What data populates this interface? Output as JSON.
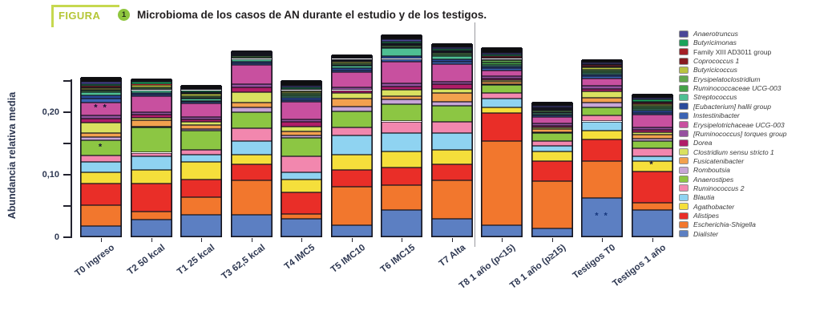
{
  "header": {
    "kicker": "FIGURA",
    "number": "1",
    "title": "Microbioma de los casos de AN durante el estudio y de los testigos."
  },
  "chart_data": {
    "type": "bar",
    "subtype": "stacked",
    "title": "Microbioma de los casos de AN durante el estudio y de los testigos.",
    "xlabel": "",
    "ylabel": "Abundancia relativa media",
    "ylim": [
      0,
      0.26
    ],
    "grid": false,
    "legend_position": "right",
    "yticks": [
      {
        "value": 0.0,
        "label": "0"
      },
      {
        "value": 0.05,
        "label": ""
      },
      {
        "value": 0.1,
        "label": "0,10"
      },
      {
        "value": 0.15,
        "label": ""
      },
      {
        "value": 0.2,
        "label": "0,20"
      },
      {
        "value": 0.25,
        "label": ""
      }
    ],
    "categories": [
      "T0 ingreso",
      "T2 50 kcal",
      "T1 25 kcal",
      "T3 62,5 kcal",
      "T4 IMC5",
      "T5 IMC10",
      "T6 IMC15",
      "T7 Alta",
      "T8 1 año (p<15)",
      "T8 1 año (p≥15)",
      "Testigos T0",
      "Testigos 1 año"
    ],
    "group_divider_after": "T7 Alta",
    "legend": [
      {
        "label": "Anaerotruncus",
        "color": "#4a4798",
        "italic": true
      },
      {
        "label": "Butyricimonas",
        "color": "#19a35a",
        "italic": true
      },
      {
        "label": "Family XIII AD3011 group",
        "color": "#a42026",
        "italic": false
      },
      {
        "label": "Coprococcus 1",
        "color": "#871b20",
        "italic": true
      },
      {
        "label": "Butyricicoccus",
        "color": "#b9c440",
        "italic": true
      },
      {
        "label": "Erysipelatoclostridium",
        "color": "#62a84e",
        "italic": true
      },
      {
        "label": "Ruminococcaceae UCG-003",
        "color": "#44a148",
        "italic": true
      },
      {
        "label": "Streptococcus",
        "color": "#4ebf93",
        "italic": true
      },
      {
        "label": "[Eubacterium] hallii group",
        "color": "#2a4a9b",
        "italic": true
      },
      {
        "label": "Instestinibacter",
        "color": "#3c64b4",
        "italic": true
      },
      {
        "label": "Erysipelotrichaceae UCG-003",
        "color": "#c8509f",
        "italic": true
      },
      {
        "label": "[Ruminococcus] torques group",
        "color": "#95519f",
        "italic": true
      },
      {
        "label": "Dorea",
        "color": "#b01d68",
        "italic": true
      },
      {
        "label": "Clostridium sensu stricto 1",
        "color": "#d9e160",
        "italic": true
      },
      {
        "label": "Fusicatenibacter",
        "color": "#f2a14e",
        "italic": true
      },
      {
        "label": "Romboutsia",
        "color": "#c7a6d6",
        "italic": true
      },
      {
        "label": "Anaerostipes",
        "color": "#8cc643",
        "italic": true
      },
      {
        "label": "Ruminococcus 2",
        "color": "#f287ae",
        "italic": true
      },
      {
        "label": "Blautia",
        "color": "#8fd3f1",
        "italic": true
      },
      {
        "label": "Agathobacter",
        "color": "#f5df3b",
        "italic": true
      },
      {
        "label": "Alistipes",
        "color": "#e92e28",
        "italic": true
      },
      {
        "label": "Escherichia-Shigella",
        "color": "#f2772d",
        "italic": true
      },
      {
        "label": "Dialister",
        "color": "#5c7fc2",
        "italic": true
      }
    ],
    "colors": {
      "Dialister": "#5c7fc2",
      "Escherichia-Shigella": "#f2772d",
      "Alistipes": "#e92e28",
      "Agathobacter": "#f5df3b",
      "Blautia": "#8fd3f1",
      "Ruminococcus 2": "#f287ae",
      "Anaerostipes": "#8cc643",
      "Romboutsia": "#c7a6d6",
      "Fusicatenibacter": "#f2a14e",
      "Clostridium sensu stricto 1": "#d9e160",
      "Dorea": "#b01d68",
      "[Ruminococcus] torques group": "#95519f",
      "Erysipelotrichaceae UCG-003": "#c8509f",
      "Instestinibacter": "#3c64b4",
      "[Eubacterium] hallii group": "#2a4a9b",
      "Streptococcus": "#4ebf93",
      "Ruminococcaceae UCG-003": "#44a148",
      "Erysipelatoclostridium": "#62a84e",
      "Butyricicoccus": "#b9c440",
      "Coprococcus 1": "#871b20",
      "Family XIII AD3011 group": "#a42026",
      "Butyricimonas": "#19a35a",
      "Anaerotruncus": "#4a4798",
      "Otros": "#0e0e10"
    },
    "stack_order_bottom_to_top": [
      "Dialister",
      "Escherichia-Shigella",
      "Alistipes",
      "Agathobacter",
      "Blautia",
      "Ruminococcus 2",
      "Anaerostipes",
      "Romboutsia",
      "Fusicatenibacter",
      "Clostridium sensu stricto 1",
      "Dorea",
      "[Ruminococcus] torques group",
      "Erysipelotrichaceae UCG-003",
      "Instestinibacter",
      "[Eubacterium] hallii group",
      "Streptococcus",
      "Ruminococcaceae UCG-003",
      "Erysipelatoclostridium",
      "Butyricicoccus",
      "Coprococcus 1",
      "Family XIII AD3011 group",
      "Butyricimonas",
      "Anaerotruncus",
      "Otros"
    ],
    "bars": [
      {
        "label": "T0 ingreso",
        "segments": {
          "Dialister": 0.017,
          "Escherichia-Shigella": 0.033,
          "Alistipes": 0.035,
          "Agathobacter": 0.018,
          "Blautia": 0.016,
          "Ruminococcus 2": 0.01,
          "Anaerostipes": 0.025,
          "Romboutsia": 0.005,
          "Fusicatenibacter": 0.006,
          "Clostridium sensu stricto 1": 0.017,
          "Dorea": 0.006,
          "[Ruminococcus] torques group": 0.006,
          "Erysipelotrichaceae UCG-003": 0.02,
          "Instestinibacter": 0.006,
          "[Eubacterium] hallii group": 0.006,
          "Streptococcus": 0.005,
          "Ruminococcaceae UCG-003": 0.002,
          "Erysipelatoclostridium": 0.002,
          "Butyricicoccus": 0.002,
          "Coprococcus 1": 0.002,
          "Family XIII AD3011 group": 0.002,
          "Butyricimonas": 0.003,
          "Anaerotruncus": 0.003,
          "Otros": 0.008
        },
        "annotations": [
          {
            "category": "Erysipelotrichaceae UCG-003",
            "text": "* *",
            "color": "#141432"
          },
          {
            "category": "Anaerostipes",
            "text": "*",
            "color": "#141432"
          }
        ]
      },
      {
        "label": "T2 50 kcal",
        "segments": {
          "Dialister": 0.027,
          "Escherichia-Shigella": 0.013,
          "Alistipes": 0.045,
          "Agathobacter": 0.021,
          "Blautia": 0.022,
          "Ruminococcus 2": 0.006,
          "Anaerostipes": 0.04,
          "Romboutsia": 0.002,
          "Fusicatenibacter": 0.01,
          "Clostridium sensu stricto 1": 0.004,
          "Dorea": 0.005,
          "[Ruminococcus] torques group": 0.004,
          "Erysipelotrichaceae UCG-003": 0.025,
          "Instestinibacter": 0.003,
          "[Eubacterium] hallii group": 0.003,
          "Streptococcus": 0.004,
          "Ruminococcaceae UCG-003": 0.002,
          "Erysipelatoclostridium": 0.003,
          "Butyricicoccus": 0.003,
          "Coprococcus 1": 0.001,
          "Family XIII AD3011 group": 0.001,
          "Butyricimonas": 0.003,
          "Anaerotruncus": 0.002,
          "Otros": 0.003
        },
        "annotations": []
      },
      {
        "label": "T1 25 kcal",
        "segments": {
          "Dialister": 0.035,
          "Escherichia-Shigella": 0.028,
          "Alistipes": 0.028,
          "Agathobacter": 0.028,
          "Blautia": 0.012,
          "Ruminococcus 2": 0.008,
          "Anaerostipes": 0.03,
          "Romboutsia": 0.003,
          "Fusicatenibacter": 0.006,
          "Clostridium sensu stricto 1": 0.005,
          "Dorea": 0.004,
          "[Ruminococcus] torques group": 0.004,
          "Erysipelotrichaceae UCG-003": 0.022,
          "Instestinibacter": 0.002,
          "[Eubacterium] hallii group": 0.002,
          "Streptococcus": 0.003,
          "Ruminococcaceae UCG-003": 0.002,
          "Erysipelatoclostridium": 0.002,
          "Butyricicoccus": 0.004,
          "Coprococcus 1": 0.001,
          "Family XIII AD3011 group": 0.002,
          "Butyricimonas": 0.003,
          "Anaerotruncus": 0.002,
          "Otros": 0.006
        },
        "annotations": []
      },
      {
        "label": "T3 62,5 kcal",
        "segments": {
          "Dialister": 0.035,
          "Escherichia-Shigella": 0.055,
          "Alistipes": 0.026,
          "Agathobacter": 0.015,
          "Blautia": 0.022,
          "Ruminococcus 2": 0.02,
          "Anaerostipes": 0.026,
          "Romboutsia": 0.007,
          "Fusicatenibacter": 0.008,
          "Clostridium sensu stricto 1": 0.017,
          "Dorea": 0.007,
          "[Ruminococcus] torques group": 0.005,
          "Erysipelotrichaceae UCG-003": 0.032,
          "Instestinibacter": 0.002,
          "[Eubacterium] hallii group": 0.003,
          "Streptococcus": 0.004,
          "Ruminococcaceae UCG-003": 0.002,
          "Erysipelatoclostridium": 0.002,
          "Butyricicoccus": 0.002,
          "Coprococcus 1": 0.001,
          "Family XIII AD3011 group": 0.001,
          "Butyricimonas": 0.002,
          "Anaerotruncus": 0.001,
          "Otros": 0.003
        },
        "annotations": []
      },
      {
        "label": "T4 IMC5",
        "segments": {
          "Dialister": 0.028,
          "Escherichia-Shigella": 0.008,
          "Alistipes": 0.035,
          "Agathobacter": 0.02,
          "Blautia": 0.012,
          "Ruminococcus 2": 0.025,
          "Anaerostipes": 0.03,
          "Romboutsia": 0.003,
          "Fusicatenibacter": 0.007,
          "Clostridium sensu stricto 1": 0.008,
          "Dorea": 0.007,
          "[Ruminococcus] torques group": 0.004,
          "Erysipelotrichaceae UCG-003": 0.028,
          "Instestinibacter": 0.003,
          "[Eubacterium] hallii group": 0.004,
          "Streptococcus": 0.003,
          "Ruminococcaceae UCG-003": 0.002,
          "Erysipelatoclostridium": 0.002,
          "Butyricicoccus": 0.003,
          "Coprococcus 1": 0.002,
          "Family XIII AD3011 group": 0.002,
          "Butyricimonas": 0.003,
          "Anaerotruncus": 0.002,
          "Otros": 0.009
        },
        "annotations": []
      },
      {
        "label": "T5 IMC10",
        "segments": {
          "Dialister": 0.018,
          "Escherichia-Shigella": 0.062,
          "Alistipes": 0.026,
          "Agathobacter": 0.025,
          "Blautia": 0.03,
          "Ruminococcus 2": 0.013,
          "Anaerostipes": 0.026,
          "Romboutsia": 0.008,
          "Fusicatenibacter": 0.013,
          "Clostridium sensu stricto 1": 0.008,
          "Dorea": 0.005,
          "[Ruminococcus] torques group": 0.004,
          "Erysipelotrichaceae UCG-003": 0.025,
          "Instestinibacter": 0.003,
          "[Eubacterium] hallii group": 0.003,
          "Streptococcus": 0.004,
          "Ruminococcaceae UCG-003": 0.002,
          "Erysipelatoclostridium": 0.002,
          "Butyricicoccus": 0.003,
          "Coprococcus 1": 0.001,
          "Family XIII AD3011 group": 0.001,
          "Butyricimonas": 0.002,
          "Anaerotruncus": 0.002,
          "Otros": 0.005
        },
        "annotations": []
      },
      {
        "label": "T6 IMC15",
        "segments": {
          "Dialister": 0.042,
          "Escherichia-Shigella": 0.04,
          "Alistipes": 0.028,
          "Agathobacter": 0.026,
          "Blautia": 0.03,
          "Ruminococcus 2": 0.018,
          "Anaerostipes": 0.028,
          "Romboutsia": 0.007,
          "Fusicatenibacter": 0.005,
          "Clostridium sensu stricto 1": 0.01,
          "Dorea": 0.006,
          "[Ruminococcus] torques group": 0.005,
          "Erysipelotrichaceae UCG-003": 0.035,
          "Instestinibacter": 0.004,
          "[Eubacterium] hallii group": 0.005,
          "Streptococcus": 0.012,
          "Ruminococcaceae UCG-003": 0.002,
          "Erysipelatoclostridium": 0.002,
          "Butyricicoccus": 0.002,
          "Coprococcus 1": 0.001,
          "Family XIII AD3011 group": 0.001,
          "Butyricimonas": 0.003,
          "Anaerotruncus": 0.003,
          "Otros": 0.008
        },
        "annotations": []
      },
      {
        "label": "T7 Alta",
        "segments": {
          "Dialister": 0.028,
          "Escherichia-Shigella": 0.062,
          "Alistipes": 0.026,
          "Agathobacter": 0.022,
          "Blautia": 0.027,
          "Ruminococcus 2": 0.018,
          "Anaerostipes": 0.026,
          "Romboutsia": 0.006,
          "Fusicatenibacter": 0.015,
          "Clostridium sensu stricto 1": 0.006,
          "Dorea": 0.008,
          "[Ruminococcus] torques group": 0.004,
          "Erysipelotrichaceae UCG-003": 0.028,
          "Instestinibacter": 0.003,
          "[Eubacterium] hallii group": 0.004,
          "Streptococcus": 0.006,
          "Ruminococcaceae UCG-003": 0.002,
          "Erysipelatoclostridium": 0.002,
          "Butyricicoccus": 0.002,
          "Coprococcus 1": 0.001,
          "Family XIII AD3011 group": 0.001,
          "Butyricimonas": 0.003,
          "Anaerotruncus": 0.002,
          "Otros": 0.007
        },
        "annotations": []
      },
      {
        "label": "T8 1 año (p<15)",
        "segments": {
          "Dialister": 0.018,
          "Escherichia-Shigella": 0.135,
          "Alistipes": 0.045,
          "Agathobacter": 0.009,
          "Blautia": 0.014,
          "Ruminococcus 2": 0.008,
          "Anaerostipes": 0.013,
          "Romboutsia": 0.002,
          "Fusicatenibacter": 0.003,
          "Clostridium sensu stricto 1": 0.003,
          "Dorea": 0.003,
          "[Ruminococcus] torques group": 0.003,
          "Erysipelotrichaceae UCG-003": 0.01,
          "Instestinibacter": 0.003,
          "[Eubacterium] hallii group": 0.003,
          "Streptococcus": 0.003,
          "Ruminococcaceae UCG-003": 0.003,
          "Erysipelatoclostridium": 0.004,
          "Butyricicoccus": 0.002,
          "Coprococcus 1": 0.002,
          "Family XIII AD3011 group": 0.002,
          "Butyricimonas": 0.003,
          "Anaerotruncus": 0.003,
          "Otros": 0.009
        },
        "annotations": []
      },
      {
        "label": "T8 1 año (p≥15)",
        "segments": {
          "Dialister": 0.013,
          "Escherichia-Shigella": 0.075,
          "Alistipes": 0.033,
          "Agathobacter": 0.015,
          "Blautia": 0.009,
          "Ruminococcus 2": 0.007,
          "Anaerostipes": 0.013,
          "Romboutsia": 0.002,
          "Fusicatenibacter": 0.005,
          "Clostridium sensu stricto 1": 0.002,
          "Dorea": 0.003,
          "[Ruminococcus] torques group": 0.004,
          "Erysipelotrichaceae UCG-003": 0.01,
          "Instestinibacter": 0.002,
          "[Eubacterium] hallii group": 0.002,
          "Streptococcus": 0.002,
          "Ruminococcaceae UCG-003": 0.002,
          "Erysipelatoclostridium": 0.002,
          "Butyricicoccus": 0.002,
          "Coprococcus 1": 0.001,
          "Family XIII AD3011 group": 0.001,
          "Butyricimonas": 0.002,
          "Anaerotruncus": 0.002,
          "Otros": 0.006
        },
        "annotations": []
      },
      {
        "label": "Testigos T0",
        "segments": {
          "Dialister": 0.062,
          "Escherichia-Shigella": 0.058,
          "Alistipes": 0.035,
          "Agathobacter": 0.014,
          "Blautia": 0.015,
          "Ruminococcus 2": 0.01,
          "Anaerostipes": 0.012,
          "Romboutsia": 0.008,
          "Fusicatenibacter": 0.008,
          "Clostridium sensu stricto 1": 0.01,
          "Dorea": 0.004,
          "[Ruminococcus] torques group": 0.005,
          "Erysipelotrichaceae UCG-003": 0.012,
          "Instestinibacter": 0.003,
          "[Eubacterium] hallii group": 0.003,
          "Streptococcus": 0.003,
          "Ruminococcaceae UCG-003": 0.002,
          "Erysipelatoclostridium": 0.003,
          "Butyricicoccus": 0.003,
          "Coprococcus 1": 0.002,
          "Family XIII AD3011 group": 0.002,
          "Butyricimonas": 0.002,
          "Anaerotruncus": 0.002,
          "Otros": 0.005
        },
        "annotations": [
          {
            "category": "Dialister",
            "text": "* *",
            "color": "#16377e"
          }
        ]
      },
      {
        "label": "Testigos 1 año",
        "segments": {
          "Dialister": 0.042,
          "Escherichia-Shigella": 0.012,
          "Alistipes": 0.05,
          "Agathobacter": 0.017,
          "Blautia": 0.007,
          "Ruminococcus 2": 0.013,
          "Anaerostipes": 0.012,
          "Romboutsia": 0.003,
          "Fusicatenibacter": 0.007,
          "Clostridium sensu stricto 1": 0.004,
          "Dorea": 0.004,
          "[Ruminococcus] torques group": 0.004,
          "Erysipelotrichaceae UCG-003": 0.02,
          "Instestinibacter": 0.003,
          "[Eubacterium] hallii group": 0.003,
          "Streptococcus": 0.003,
          "Ruminococcaceae UCG-003": 0.002,
          "Erysipelatoclostridium": 0.003,
          "Butyricicoccus": 0.003,
          "Coprococcus 1": 0.002,
          "Family XIII AD3011 group": 0.002,
          "Butyricimonas": 0.003,
          "Anaerotruncus": 0.003,
          "Otros": 0.006
        },
        "annotations": [
          {
            "category": "Agathobacter",
            "text": "*",
            "color": "#141432"
          }
        ]
      }
    ]
  }
}
